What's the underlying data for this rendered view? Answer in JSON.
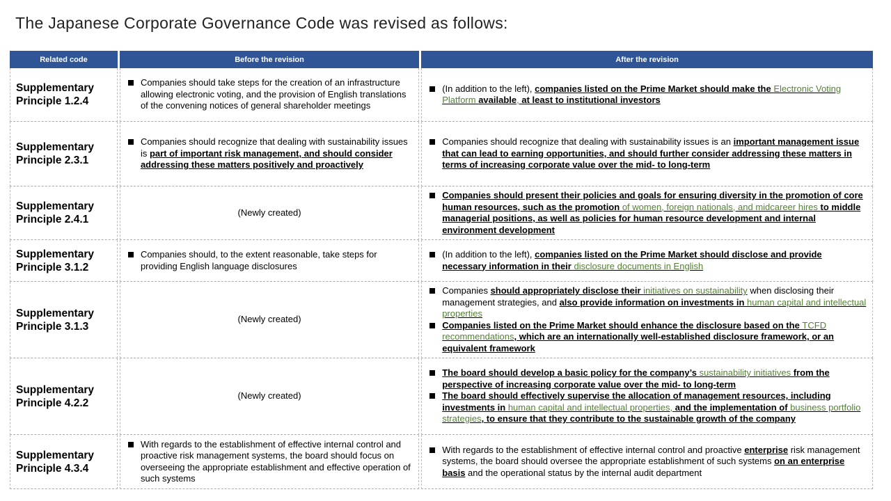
{
  "title": "The Japanese Corporate Governance Code was revised as follows:",
  "headers": {
    "code": "Related code",
    "before": "Before the revision",
    "after": "After the revision"
  },
  "accent": "#2f5597",
  "highlight": "#548235",
  "rows": [
    {
      "code": [
        "Supplementary",
        "Principle 1.2.4"
      ],
      "before": {
        "bullets": [
          [
            {
              "t": "Companies should take steps for the creation of an infrastructure allowing electronic voting, and the provision of English translations of the convening notices of general shareholder meetings",
              "s": "n"
            }
          ]
        ]
      },
      "after": [
        [
          {
            "t": "(In addition to the left), ",
            "s": "n"
          },
          {
            "t": "companies listed on the Prime Market should make the ",
            "s": "b"
          },
          {
            "t": "Electronic Voting Platform ",
            "s": "g"
          },
          {
            "t": "available",
            "s": "b"
          },
          {
            "t": ", ",
            "s": "g"
          },
          {
            "t": "at least to institutional investors",
            "s": "b"
          }
        ]
      ]
    },
    {
      "code": [
        "Supplementary",
        "Principle 2.3.1"
      ],
      "before": {
        "bullets": [
          [
            {
              "t": "Companies should recognize that dealing with sustainability issues is ",
              "s": "n"
            },
            {
              "t": "part of important risk management, and should consider addressing these matters positively and proactively",
              "s": "b"
            }
          ]
        ]
      },
      "after": [
        [
          {
            "t": "Companies should recognize that dealing with sustainability issues is an ",
            "s": "n"
          },
          {
            "t": "important management issue that can lead to earning opportunities, and should further consider addressing these matters in terms of increasing corporate value over the mid- to long-term",
            "s": "b"
          }
        ]
      ]
    },
    {
      "code": [
        "Supplementary",
        "Principle 2.4.1"
      ],
      "before": {
        "text": "(Newly created)"
      },
      "after": [
        [
          {
            "t": "Companies should present their policies and goals for ensuring diversity in the promotion of core human resources, such as the promotion ",
            "s": "b"
          },
          {
            "t": "of women, foreign nationals, and midcareer hires ",
            "s": "g"
          },
          {
            "t": "to middle managerial positions, as well as policies for human resource development and internal environment development",
            "s": "b"
          }
        ]
      ]
    },
    {
      "code": [
        "Supplementary",
        "Principle 3.1.2"
      ],
      "before": {
        "bullets": [
          [
            {
              "t": "Companies should, to the extent reasonable, take steps for providing English language disclosures",
              "s": "n"
            }
          ]
        ]
      },
      "after": [
        [
          {
            "t": "(In addition to the left), ",
            "s": "n"
          },
          {
            "t": "companies listed on the Prime Market should disclose and provide necessary information in their ",
            "s": "b"
          },
          {
            "t": "disclosure documents in English",
            "s": "g"
          }
        ]
      ]
    },
    {
      "code": [
        "Supplementary",
        "Principle 3.1.3"
      ],
      "before": {
        "text": "(Newly created)"
      },
      "after": [
        [
          {
            "t": "Companies ",
            "s": "n"
          },
          {
            "t": "should appropriately disclose their ",
            "s": "b"
          },
          {
            "t": "initiatives on sustainability",
            "s": "g"
          },
          {
            "t": " when disclosing their management strategies, and ",
            "s": "n"
          },
          {
            "t": "also provide information on investments in ",
            "s": "b"
          },
          {
            "t": "human capital and intellectual properties",
            "s": "g"
          }
        ],
        [
          {
            "t": "Companies listed on the Prime Market should enhance the disclosure based on the ",
            "s": "b"
          },
          {
            "t": "TCFD recommendations",
            "s": "g"
          },
          {
            "t": ", which are an internationally well-established disclosure framework, or an equivalent framework",
            "s": "b"
          }
        ]
      ]
    },
    {
      "code": [
        "Supplementary",
        "Principle 4.2.2"
      ],
      "before": {
        "text": "(Newly created)"
      },
      "after": [
        [
          {
            "t": "The board should develop a basic policy for the company’s ",
            "s": "b"
          },
          {
            "t": "sustainability initiatives",
            "s": "g"
          },
          {
            "t": " from the perspective of increasing corporate value over the mid- to long-term",
            "s": "b"
          }
        ],
        [
          {
            "t": "The board should effectively supervise the allocation of management resources, including investments in ",
            "s": "b"
          },
          {
            "t": "human capital and intellectual properties, ",
            "s": "g"
          },
          {
            "t": "and the implementation of ",
            "s": "b"
          },
          {
            "t": "business portfolio strategies",
            "s": "g"
          },
          {
            "t": ", to ensure that they contribute to the sustainable growth of the company",
            "s": "b"
          }
        ]
      ]
    },
    {
      "code": [
        "Supplementary",
        "Principle 4.3.4"
      ],
      "before": {
        "bullets": [
          [
            {
              "t": "With regards to the establishment of effective internal control and proactive risk management systems, the board should focus on overseeing the appropriate establishment and effective operation of such systems",
              "s": "n"
            }
          ]
        ]
      },
      "after": [
        [
          {
            "t": "With regards to the establishment of effective internal control and proactive ",
            "s": "n"
          },
          {
            "t": "enterprise",
            "s": "b"
          },
          {
            "t": " risk management systems, the board should oversee the appropriate establishment of such systems ",
            "s": "n"
          },
          {
            "t": "on an enterprise basis",
            "s": "b"
          },
          {
            "t": " and the operational status by the internal audit department",
            "s": "n"
          }
        ]
      ]
    }
  ]
}
